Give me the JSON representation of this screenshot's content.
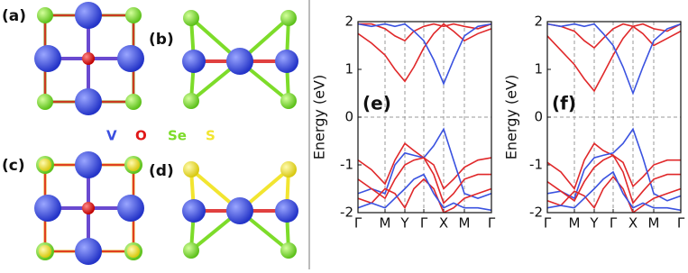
{
  "figure": {
    "panels": [
      "(a)",
      "(b)",
      "(c)",
      "(d)"
    ],
    "legend": [
      {
        "text": "V",
        "color": "#3b4fe0"
      },
      {
        "text": "O",
        "color": "#e01818"
      },
      {
        "text": "Se",
        "color": "#7ddc2a"
      },
      {
        "text": "S",
        "color": "#f2e530"
      }
    ]
  },
  "chart_data": [
    {
      "type": "line",
      "annotation": "(e)",
      "ylabel": "Energy (eV)",
      "x": [
        0,
        15,
        30,
        41,
        52,
        62,
        73,
        84,
        95,
        106,
        118,
        133,
        148
      ],
      "xlim": [
        0,
        148
      ],
      "xticks": [
        {
          "value": 0,
          "label": "Γ"
        },
        {
          "value": 30,
          "label": "M"
        },
        {
          "value": 52,
          "label": "Y"
        },
        {
          "value": 73,
          "label": "Γ"
        },
        {
          "value": 95,
          "label": "X"
        },
        {
          "value": 118,
          "label": "M"
        },
        {
          "value": 148,
          "label": "Γ"
        }
      ],
      "ylim": [
        -2,
        2
      ],
      "yticks": [
        -2,
        -1,
        0,
        1,
        2
      ],
      "grid": true,
      "series": [
        {
          "color": "#e0282a",
          "values": [
            1.75,
            1.55,
            1.3,
            1.0,
            0.75,
            1.05,
            1.45,
            1.75,
            1.95,
            1.8,
            1.6,
            1.75,
            1.85
          ]
        },
        {
          "color": "#e0282a",
          "values": [
            1.95,
            1.95,
            1.85,
            1.7,
            1.6,
            1.8,
            1.9,
            1.95,
            1.9,
            1.95,
            1.9,
            1.85,
            1.95
          ]
        },
        {
          "color": "#3a52e0",
          "values": [
            1.95,
            1.9,
            1.95,
            1.9,
            1.95,
            1.8,
            1.6,
            1.2,
            0.7,
            1.2,
            1.7,
            1.9,
            1.95
          ]
        },
        {
          "color": "#e0282a",
          "values": [
            -0.9,
            -1.1,
            -1.4,
            -0.9,
            -0.55,
            -0.7,
            -0.85,
            -1.0,
            -1.5,
            -1.3,
            -1.05,
            -0.9,
            -0.85
          ]
        },
        {
          "color": "#3a52e0",
          "values": [
            -1.6,
            -1.5,
            -1.6,
            -1.0,
            -0.75,
            -0.8,
            -0.85,
            -0.6,
            -0.25,
            -0.9,
            -1.6,
            -1.7,
            -1.6
          ]
        },
        {
          "color": "#e0282a",
          "values": [
            -1.3,
            -1.5,
            -1.7,
            -1.3,
            -1.0,
            -0.9,
            -0.85,
            -1.2,
            -1.8,
            -1.6,
            -1.3,
            -1.2,
            -1.2
          ]
        },
        {
          "color": "#e0282a",
          "values": [
            -1.7,
            -1.8,
            -1.5,
            -1.6,
            -1.9,
            -1.5,
            -1.3,
            -1.5,
            -2.0,
            -1.9,
            -1.7,
            -1.6,
            -1.5
          ]
        },
        {
          "color": "#3a52e0",
          "values": [
            -1.9,
            -1.8,
            -1.9,
            -1.7,
            -1.5,
            -1.3,
            -1.2,
            -1.6,
            -1.9,
            -1.8,
            -1.9,
            -1.9,
            -1.95
          ]
        }
      ]
    },
    {
      "type": "line",
      "annotation": "(f)",
      "ylabel": "Energy (eV)",
      "x": [
        0,
        15,
        30,
        41,
        52,
        62,
        73,
        84,
        95,
        106,
        118,
        133,
        148
      ],
      "xlim": [
        0,
        148
      ],
      "xticks": [
        {
          "value": 0,
          "label": "Γ"
        },
        {
          "value": 30,
          "label": "M"
        },
        {
          "value": 52,
          "label": "Y"
        },
        {
          "value": 73,
          "label": "Γ"
        },
        {
          "value": 95,
          "label": "X"
        },
        {
          "value": 118,
          "label": "M"
        },
        {
          "value": 148,
          "label": "Γ"
        }
      ],
      "ylim": [
        -2,
        2
      ],
      "yticks": [
        -2,
        -1,
        0,
        1,
        2
      ],
      "grid": true,
      "series": [
        {
          "color": "#e0282a",
          "values": [
            1.7,
            1.4,
            1.1,
            0.8,
            0.55,
            0.9,
            1.3,
            1.65,
            1.9,
            1.75,
            1.5,
            1.65,
            1.8
          ]
        },
        {
          "color": "#e0282a",
          "values": [
            1.95,
            1.9,
            1.8,
            1.6,
            1.45,
            1.65,
            1.85,
            1.95,
            1.9,
            1.95,
            1.85,
            1.8,
            1.95
          ]
        },
        {
          "color": "#3a52e0",
          "values": [
            1.95,
            1.9,
            1.95,
            1.9,
            1.95,
            1.75,
            1.5,
            1.05,
            0.5,
            1.05,
            1.6,
            1.85,
            1.95
          ]
        },
        {
          "color": "#e0282a",
          "values": [
            -0.95,
            -1.15,
            -1.5,
            -0.9,
            -0.55,
            -0.7,
            -0.8,
            -0.95,
            -1.45,
            -1.25,
            -1.0,
            -0.9,
            -0.9
          ]
        },
        {
          "color": "#3a52e0",
          "values": [
            -1.6,
            -1.55,
            -1.7,
            -1.1,
            -0.85,
            -0.8,
            -0.75,
            -0.55,
            -0.25,
            -0.85,
            -1.6,
            -1.75,
            -1.65
          ]
        },
        {
          "color": "#e0282a",
          "values": [
            -1.35,
            -1.55,
            -1.75,
            -1.35,
            -1.05,
            -0.9,
            -0.8,
            -1.15,
            -1.8,
            -1.55,
            -1.3,
            -1.2,
            -1.2
          ]
        },
        {
          "color": "#e0282a",
          "values": [
            -1.75,
            -1.85,
            -1.55,
            -1.65,
            -1.9,
            -1.5,
            -1.25,
            -1.5,
            -2.0,
            -1.85,
            -1.7,
            -1.6,
            -1.5
          ]
        },
        {
          "color": "#3a52e0",
          "values": [
            -1.9,
            -1.85,
            -1.9,
            -1.7,
            -1.5,
            -1.3,
            -1.15,
            -1.6,
            -1.9,
            -1.8,
            -1.9,
            -1.9,
            -1.95
          ]
        }
      ]
    }
  ]
}
